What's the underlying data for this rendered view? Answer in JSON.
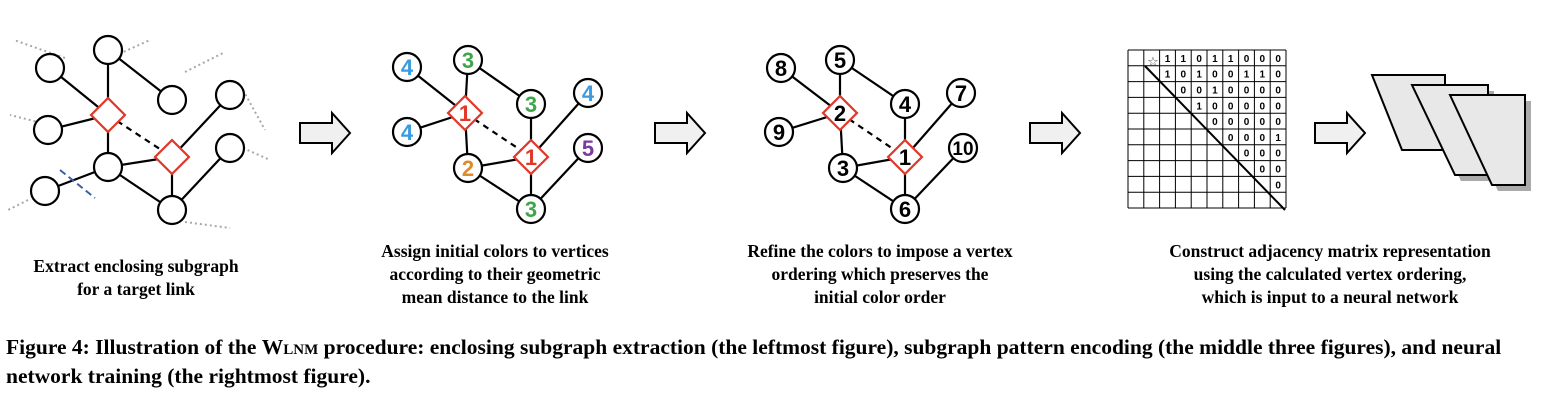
{
  "colors": {
    "red": "#e0392b",
    "green": "#3fa54a",
    "blue": "#3a9be0",
    "orange": "#e08a2b",
    "purple": "#7a3aa0",
    "gray_dotted": "#a8a8a8",
    "dashed_blue": "#3b5ea8"
  },
  "panels": [
    {
      "id": "extract",
      "caption": "Extract enclosing subgraph\nfor a target link"
    },
    {
      "id": "assign",
      "caption": "Assign initial colors to vertices\naccording to their geometric\nmean distance to the link",
      "labels": [
        "3",
        "4",
        "1",
        "3",
        "4",
        "4",
        "2",
        "1",
        "5",
        "3"
      ]
    },
    {
      "id": "refine",
      "caption": "Refine the colors to impose a vertex\nordering which preserves the\ninitial color order",
      "labels": [
        "5",
        "8",
        "2",
        "4",
        "7",
        "9",
        "3",
        "1",
        "10",
        "6"
      ]
    },
    {
      "id": "construct",
      "caption": "Construct adjacency matrix representation\nusing the calculated vertex ordering,\nwhich is input to a neural network",
      "matrix_rows": [
        "1 1 0 1 1 0 0 0",
        "1 0 1 0 0 1 1 0",
        "0 0 1 0 0 0 0",
        "1 0 0 0 0 0",
        "0 0 0 0 0",
        "0 0 0 1",
        "0 0 0",
        "0 0",
        "0"
      ],
      "star_symbol": "☆"
    }
  ],
  "caption": {
    "prefix": "Figure 4: Illustration of the ",
    "method": "Wlnm",
    "suffix": " procedure: enclosing subgraph extraction (the leftmost figure), subgraph pattern encoding (the middle three figures), and neural network training (the rightmost figure)."
  }
}
